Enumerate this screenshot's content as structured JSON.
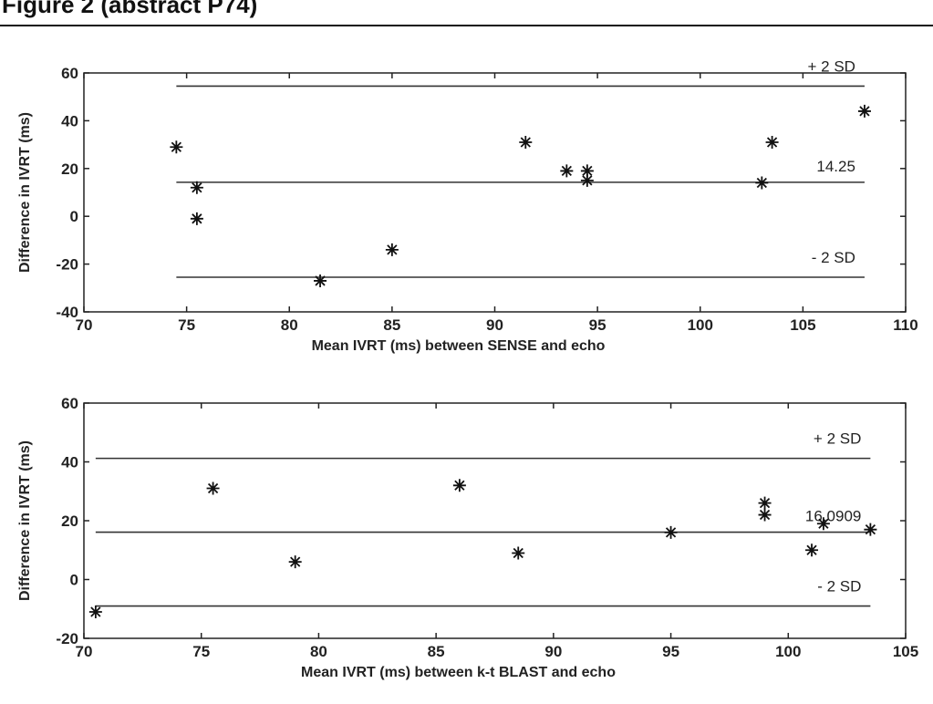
{
  "figure_title": "Figure 2 (abstract P74)",
  "chart_data": [
    {
      "type": "scatter",
      "x_label": "Mean IVRT (ms) between SENSE and echo",
      "y_label": "Difference in IVRT (ms)",
      "x": [
        74.5,
        75.5,
        75.5,
        81.5,
        85,
        91.5,
        93.5,
        94.5,
        94.5,
        103,
        103.5,
        108
      ],
      "values": [
        29,
        12,
        -1,
        -27,
        -14,
        31,
        19,
        19,
        15,
        14,
        31,
        44
      ],
      "color": "#111111",
      "hlines": [
        {
          "value": 54.5,
          "label": "+ 2 SD"
        },
        {
          "value": 14.25
        },
        {
          "value": -25.5,
          "label": "- 2 SD"
        }
      ],
      "xlim": [
        70,
        110
      ],
      "xticks": [
        70,
        75,
        80,
        85,
        90,
        95,
        100,
        105,
        110
      ],
      "ylim": [
        -40,
        60
      ],
      "yticks": [
        -40,
        -20,
        0,
        20,
        40,
        60
      ]
    },
    {
      "type": "scatter",
      "x_label": "Mean IVRT  (ms) between k-t BLAST and echo",
      "y_label": "Difference in IVRT (ms)",
      "x": [
        70.5,
        75.5,
        79,
        86,
        88.5,
        95,
        99,
        99,
        101,
        101.5,
        103.5
      ],
      "values": [
        -11,
        31,
        6,
        32,
        9,
        16,
        26,
        22,
        10,
        19,
        17
      ],
      "color": "#111111",
      "hlines": [
        {
          "value": 41.2,
          "label": "+ 2 SD"
        },
        {
          "value": 16.0909
        },
        {
          "value": -9,
          "label": "- 2 SD"
        }
      ],
      "xlim": [
        70,
        105
      ],
      "xticks": [
        70,
        75,
        80,
        85,
        90,
        95,
        100,
        105
      ],
      "ylim": [
        -20,
        60
      ],
      "yticks": [
        -20,
        0,
        20,
        40,
        60
      ]
    }
  ]
}
